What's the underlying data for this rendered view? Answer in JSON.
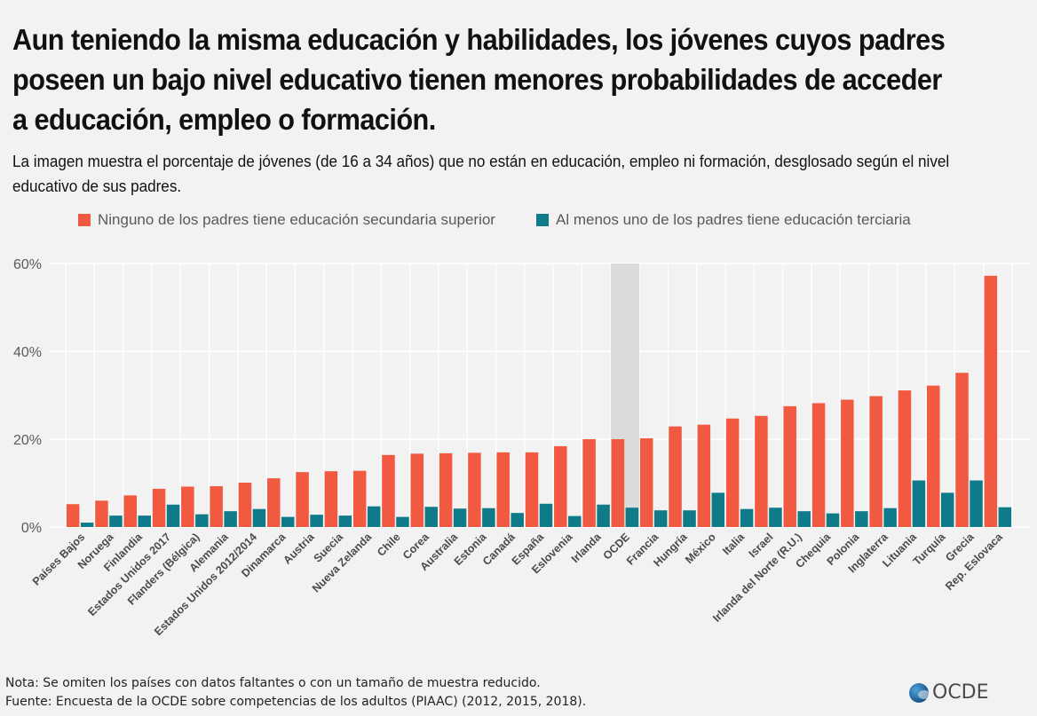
{
  "header": {
    "title": "Aun teniendo la misma educación y habilidades, los jóvenes cuyos padres poseen un bajo nivel educativo tienen menores probabilidades de acceder a educación, empleo o formación.",
    "subtitle": "La imagen muestra el porcentaje de jóvenes (de 16 a 34 años) que no están en educación, empleo ni formación, desglosado según el nivel educativo de sus padres."
  },
  "colors": {
    "series_low": "#f15a40",
    "series_high": "#0e7a8a",
    "highlight_band": "#d8d8d8",
    "grid": "#ffffff",
    "axis_text": "#5b5b5b",
    "category_text": "#4a4a4a"
  },
  "chart_data": {
    "type": "bar",
    "legend_position": "top",
    "grid": true,
    "ylim": [
      0,
      60
    ],
    "yticks": [
      0,
      20,
      40,
      60
    ],
    "ytick_labels": [
      "0%",
      "20%",
      "40%",
      "60%"
    ],
    "highlight_category": "OCDE",
    "categories": [
      "Países Bajos",
      "Noruega",
      "Finlandia",
      "Estados Unidos 2017",
      "Flanders (Bélgica)",
      "Alemania",
      "Estados Unidos 2012/2014",
      "Dinamarca",
      "Austria",
      "Suecia",
      "Nueva Zelanda",
      "Chile",
      "Corea",
      "Australia",
      "Estonia",
      "Canadá",
      "España",
      "Eslovenia",
      "Irlanda",
      "OCDE",
      "Francia",
      "Hungría",
      "México",
      "Italia",
      "Israel",
      "Irlanda del Norte (R.U.)",
      "Chequia",
      "Polonia",
      "Inglaterra",
      "Lituania",
      "Turquía",
      "Grecia",
      "Rep. Eslovaca"
    ],
    "series": [
      {
        "name": "Ninguno de los padres tiene educación secundaria superior",
        "values": [
          5.2,
          6.0,
          7.2,
          8.7,
          9.2,
          9.3,
          10.1,
          11.1,
          12.5,
          12.7,
          12.8,
          16.4,
          16.7,
          16.8,
          16.9,
          17.0,
          17.0,
          18.4,
          20.0,
          20.0,
          20.2,
          22.9,
          23.3,
          24.7,
          25.3,
          27.5,
          28.2,
          29.0,
          29.8,
          31.1,
          32.2,
          35.1,
          57.2
        ]
      },
      {
        "name": "Al menos uno de los padres tiene educación terciaria",
        "values": [
          1.0,
          2.6,
          2.6,
          5.1,
          2.9,
          3.6,
          4.1,
          2.3,
          2.8,
          2.6,
          4.7,
          2.3,
          4.6,
          4.2,
          4.3,
          3.2,
          5.3,
          2.5,
          5.1,
          4.4,
          3.8,
          3.8,
          7.8,
          4.1,
          4.4,
          3.6,
          3.1,
          3.6,
          4.3,
          10.6,
          7.8,
          10.6,
          4.5
        ]
      }
    ]
  },
  "footer": {
    "note": "Nota: Se omiten los países con datos faltantes o con un tamaño de muestra reducido.",
    "source": "Fuente: Encuesta de la OCDE sobre competencias de los adultos (PIAAC) (2012, 2015, 2018).",
    "logo_text": "OCDE",
    "logo_icon": "globe-icon"
  }
}
